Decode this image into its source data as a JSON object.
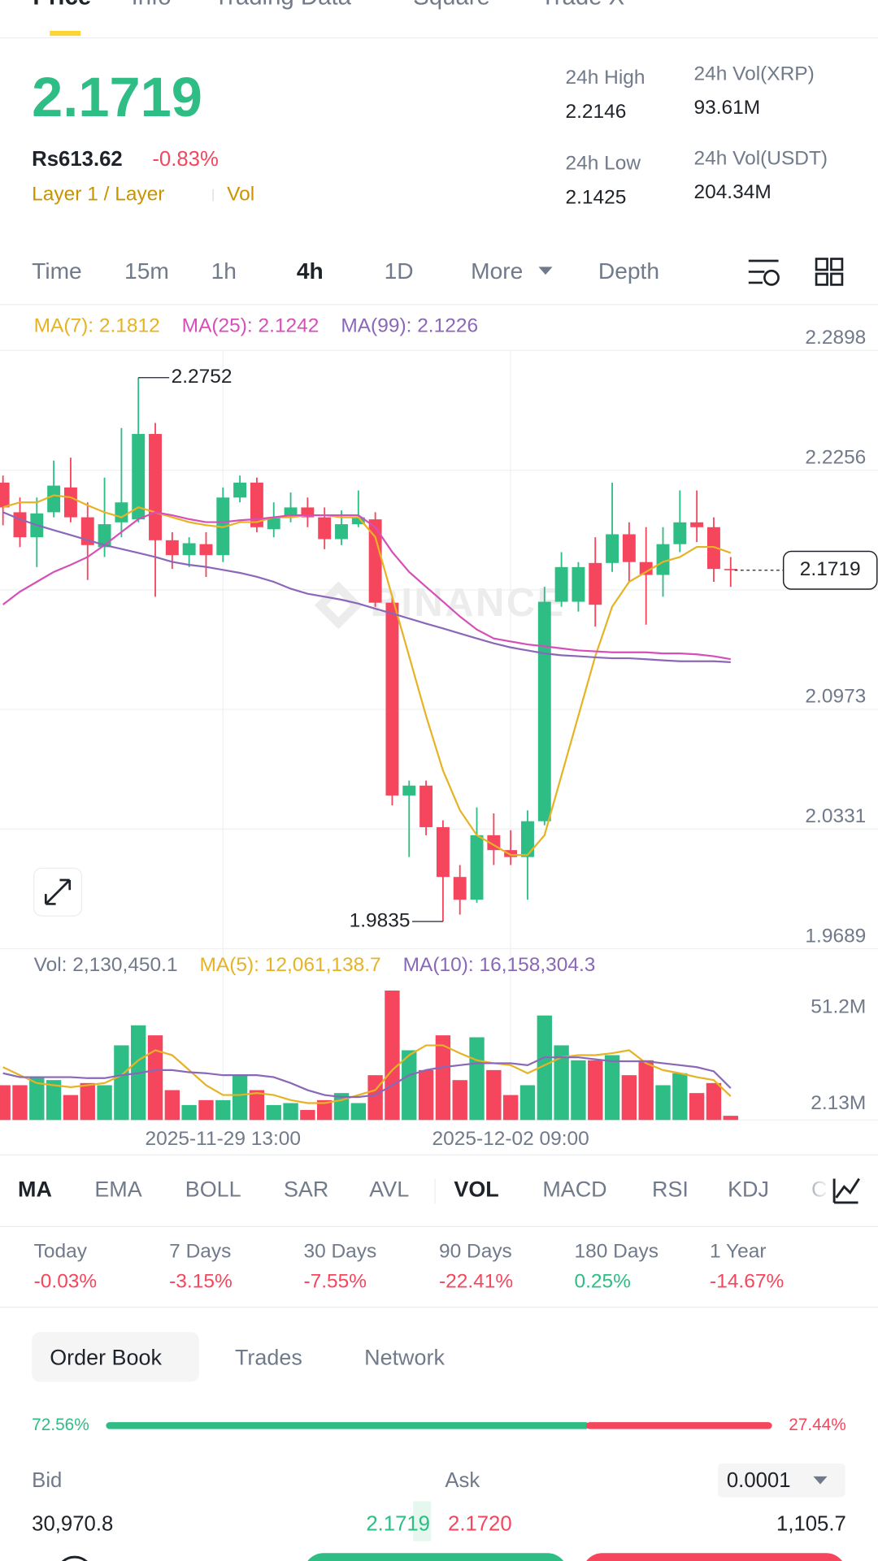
{
  "tabs": {
    "items": [
      "Price",
      "Info",
      "Trading Data",
      "Square",
      "Trade X"
    ],
    "active": 0
  },
  "header": {
    "price": "2.1719",
    "fiat": "Rs613.62",
    "change": "-0.83%",
    "tags": [
      "Layer 1 / Layer",
      "Vol"
    ]
  },
  "stats": [
    {
      "label": "24h High",
      "value": "2.2146"
    },
    {
      "label": "24h Low",
      "value": "2.1425"
    },
    {
      "label": "24h Vol(XRP)",
      "value": "93.61M"
    },
    {
      "label": "24h Vol(USDT)",
      "value": "204.34M"
    }
  ],
  "intervals": {
    "items": [
      "Time",
      "15m",
      "1h",
      "4h",
      "1D",
      "More",
      "Depth"
    ],
    "active": 3
  },
  "chart_data": [
    {
      "type": "candlestick",
      "watermark": "BINANCE",
      "categories": [
        null,
        null,
        null,
        null,
        null,
        null,
        null,
        null,
        null,
        null,
        null,
        null,
        null,
        "2025-11-29 13:00",
        null,
        null,
        null,
        null,
        null,
        null,
        null,
        null,
        null,
        null,
        null,
        null,
        null,
        null,
        null,
        null,
        "2025-12-02 09:00",
        null,
        null,
        null,
        null,
        null,
        null,
        null,
        null,
        null,
        null,
        null,
        null,
        null
      ],
      "open": [
        2.2189,
        2.203,
        2.1896,
        2.203,
        2.2163,
        2.2003,
        2.1843,
        2.1976,
        2.1992,
        2.245,
        2.188,
        2.18,
        2.1859,
        2.18,
        2.2109,
        2.2189,
        2.1939,
        2.2003,
        2.2056,
        2.2003,
        2.1886,
        2.1966,
        2.1992,
        2.1545,
        2.0511,
        2.0564,
        2.0341,
        2.0074,
        1.9952,
        2.0298,
        2.0218,
        2.0181,
        2.0373,
        2.155,
        2.155,
        2.1758,
        2.1758,
        2.1912,
        2.1763,
        2.1694,
        2.1859,
        2.1976,
        2.195,
        2.1726
      ],
      "high": [
        2.2227,
        2.2109,
        2.2109,
        2.2307,
        2.2323,
        2.2083,
        2.2216,
        2.2482,
        2.2752,
        2.2509,
        2.1923,
        2.1896,
        2.1923,
        2.2163,
        2.2227,
        2.2216,
        2.2083,
        2.2136,
        2.2109,
        2.2056,
        2.204,
        2.2147,
        2.203,
        2.1577,
        2.0591,
        2.0591,
        2.0378,
        2.0138,
        2.0447,
        2.0415,
        2.0325,
        2.0431,
        2.163,
        2.1816,
        2.1763,
        2.1896,
        2.2189,
        2.1976,
        2.195,
        2.195,
        2.2147,
        2.2147,
        2.2003,
        2.179
      ],
      "low": [
        2.196,
        2.1843,
        2.1736,
        2.2003,
        2.1976,
        2.1667,
        2.179,
        2.1896,
        2.1976,
        2.1577,
        2.1726,
        2.1736,
        2.1683,
        2.1763,
        2.2083,
        2.1923,
        2.1896,
        2.1976,
        2.195,
        2.1832,
        2.1854,
        2.195,
        2.1523,
        2.0458,
        2.0181,
        2.0298,
        1.9835,
        1.9872,
        1.9936,
        2.0138,
        2.0138,
        1.9952,
        2.0351,
        2.1523,
        2.1497,
        2.1417,
        2.171,
        2.1657,
        2.1427,
        2.1577,
        2.1816,
        2.187,
        2.1657,
        2.163
      ],
      "close": [
        2.2056,
        2.1896,
        2.2024,
        2.2173,
        2.2003,
        2.1854,
        2.1966,
        2.2083,
        2.245,
        2.188,
        2.18,
        2.1864,
        2.18,
        2.2109,
        2.2189,
        2.195,
        2.2003,
        2.2056,
        2.2003,
        2.1886,
        2.1966,
        2.2003,
        2.1545,
        2.0511,
        2.0564,
        2.0341,
        2.0074,
        1.9952,
        2.0298,
        2.0218,
        2.0181,
        2.0373,
        2.155,
        2.1736,
        2.1736,
        2.1534,
        2.1912,
        2.1763,
        2.1694,
        2.1859,
        2.1976,
        2.195,
        2.1726,
        2.1719
      ],
      "up_color": "#2ebd85",
      "down_color": "#f6465d",
      "ylim": [
        1.9689,
        2.2898
      ],
      "yticks": [
        2.2898,
        2.2256,
        2.1614,
        2.0973,
        2.0331,
        1.9689
      ],
      "grid": true,
      "series": [
        {
          "name": "MA(7): 2.1812",
          "color": "#e6b325",
          "values": [
            2.2057,
            2.2083,
            2.2083,
            2.2121,
            2.211,
            2.2067,
            2.203,
            2.2003,
            2.2057,
            2.203,
            2.2003,
            2.1977,
            2.1961,
            2.195,
            2.1977,
            2.1977,
            2.2003,
            2.2003,
            2.2014,
            2.2014,
            2.2003,
            2.2003,
            2.1897,
            2.1577,
            2.1258,
            2.0938,
            2.0645,
            2.0432,
            2.0298,
            2.0245,
            2.0192,
            2.0192,
            2.0298,
            2.0618,
            2.0938,
            2.1258,
            2.1524,
            2.1657,
            2.171,
            2.1764,
            2.179,
            2.1844,
            2.1844,
            2.1812
          ]
        },
        {
          "name": "MA(25): 2.1242",
          "color": "#d64fb8",
          "values": [
            2.1535,
            2.1604,
            2.1657,
            2.171,
            2.1748,
            2.179,
            2.1854,
            2.1924,
            2.1993,
            2.203,
            2.2014,
            2.1993,
            2.1977,
            2.1977,
            2.1987,
            2.1993,
            2.2003,
            2.2014,
            2.2014,
            2.2014,
            2.2014,
            2.2014,
            2.195,
            2.1817,
            2.171,
            2.163,
            2.1551,
            2.1471,
            2.1401,
            2.1353,
            2.1337,
            2.1321,
            2.1311,
            2.13,
            2.1289,
            2.1284,
            2.1279,
            2.1279,
            2.1279,
            2.1273,
            2.1273,
            2.1268,
            2.1258,
            2.1242
          ]
        },
        {
          "name": "MA(99): 2.1226",
          "color": "#8a67b8",
          "values": [
            2.203,
            2.1993,
            2.1961,
            2.1934,
            2.1908,
            2.1881,
            2.1854,
            2.1833,
            2.1812,
            2.179,
            2.1764,
            2.1748,
            2.1737,
            2.1721,
            2.1705,
            2.1684,
            2.1657,
            2.162,
            2.1593,
            2.1577,
            2.1561,
            2.154,
            2.1513,
            2.1487,
            2.146,
            2.1433,
            2.1407,
            2.138,
            2.1353,
            2.1327,
            2.1305,
            2.1289,
            2.1273,
            2.1263,
            2.1258,
            2.1252,
            2.1247,
            2.1247,
            2.1242,
            2.1236,
            2.1231,
            2.1231,
            2.1231,
            2.1226
          ]
        }
      ]
    },
    {
      "type": "bar",
      "name": "Vol: 2,130,450.1",
      "values": [
        17.7,
        17.7,
        21.8,
        20.3,
        12.7,
        18.8,
        17.7,
        38.0,
        48.2,
        43.1,
        15.2,
        7.6,
        10.1,
        10.1,
        22.8,
        15.2,
        7.6,
        8.6,
        5.1,
        10.1,
        13.7,
        8.6,
        22.8,
        65.9,
        35.5,
        25.4,
        43.1,
        20.3,
        42.1,
        25.4,
        12.7,
        17.7,
        53.2,
        38.0,
        30.4,
        30.4,
        33.0,
        22.8,
        30.4,
        17.7,
        23.8,
        13.7,
        18.8,
        2.13
      ],
      "ylim": [
        0,
        73.5
      ],
      "yticks": [
        {
          "value": 51.2,
          "label": "51.2M"
        },
        {
          "value": 2.13,
          "label": "2.13M"
        }
      ],
      "series": [
        {
          "name": "MA(5): 12,061,138.7",
          "color": "#e6b325",
          "values": [
            26.9,
            22.8,
            18.8,
            17.7,
            16.7,
            17.7,
            18.8,
            22.8,
            30.4,
            35.5,
            33.0,
            25.4,
            17.7,
            12.7,
            12.7,
            13.7,
            12.7,
            10.1,
            8.6,
            8.6,
            10.1,
            12.7,
            15.2,
            25.4,
            33.0,
            38.0,
            38.0,
            34.0,
            30.4,
            28.9,
            27.9,
            23.8,
            27.9,
            31.9,
            33.0,
            33.0,
            34.0,
            35.5,
            28.9,
            25.4,
            23.8,
            21.8,
            20.3,
            12.1
          ]
        },
        {
          "name": "MA(10): 16,158,304.3",
          "color": "#8a67b8",
          "values": [
            23.8,
            21.8,
            21.8,
            21.8,
            21.8,
            21.3,
            21.3,
            22.8,
            23.8,
            25.4,
            25.4,
            24.3,
            23.8,
            22.8,
            22.8,
            22.8,
            21.8,
            18.8,
            15.2,
            12.7,
            11.7,
            11.7,
            12.7,
            17.7,
            22.8,
            25.4,
            26.9,
            27.9,
            28.9,
            28.9,
            28.9,
            27.9,
            31.9,
            31.9,
            31.9,
            30.9,
            29.9,
            29.9,
            29.9,
            28.9,
            27.9,
            26.9,
            24.8,
            16.2
          ]
        }
      ]
    }
  ],
  "indicators": {
    "items": [
      "MA",
      "EMA",
      "BOLL",
      "SAR",
      "AVL",
      "VOL",
      "MACD",
      "RSI",
      "KDJ",
      "C"
    ],
    "active": [
      0,
      5
    ]
  },
  "performance": [
    {
      "label": "Today",
      "value": "-0.03%",
      "color": "#f6465d"
    },
    {
      "label": "7 Days",
      "value": "-3.15%",
      "color": "#f6465d"
    },
    {
      "label": "30 Days",
      "value": "-7.55%",
      "color": "#f6465d"
    },
    {
      "label": "90 Days",
      "value": "-22.41%",
      "color": "#f6465d"
    },
    {
      "label": "180 Days",
      "value": "0.25%",
      "color": "#2ebd85"
    },
    {
      "label": "1 Year",
      "value": "-14.67%",
      "color": "#f6465d"
    }
  ],
  "order_book": {
    "tabs": [
      "Order Book",
      "Trades",
      "Network"
    ],
    "bid_ratio": 72.56,
    "bid_ratio_label": "72.56%",
    "ask_ratio": 27.44,
    "ask_ratio_label": "27.44%",
    "bid_header": "Bid",
    "ask_header": "Ask",
    "precision": "0.0001",
    "rows": [
      [
        "30,970.8",
        "2.1719",
        "2.1720",
        "1,105.7"
      ]
    ]
  }
}
